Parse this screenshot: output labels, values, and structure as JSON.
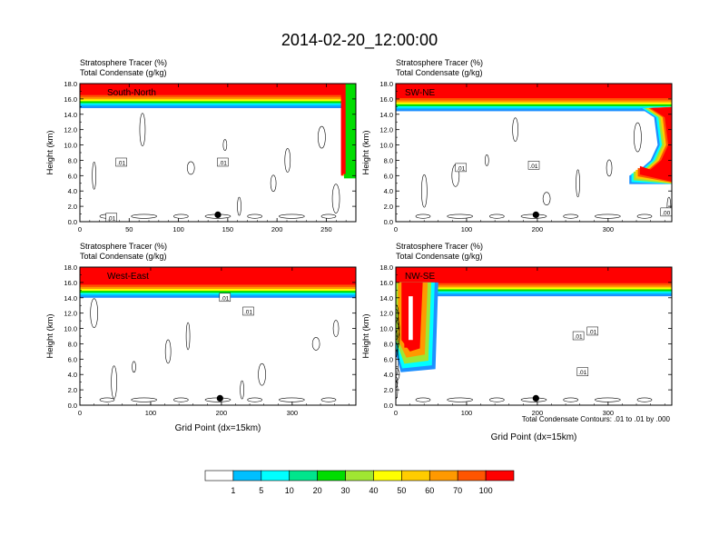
{
  "page": {
    "title": "2014-02-20_12:00:00",
    "contour_note": "Total Condensate Contours: .01 to .01 by .000"
  },
  "chart_data": {
    "type": "heatmap",
    "variables": [
      "Stratosphere Tracer   (%)",
      "Total Condensate   (g/kg)"
    ],
    "ylabel": "Height (km)",
    "xlabel": "Grid Point (dx=15km)",
    "ylim": [
      0,
      18
    ],
    "yticks": [
      "0.0",
      "2.0",
      "4.0",
      "6.0",
      "8.0",
      "10.0",
      "12.0",
      "14.0",
      "16.0",
      "18.0"
    ],
    "colorbar": {
      "levels": [
        "1",
        "5",
        "10",
        "20",
        "30",
        "40",
        "50",
        "60",
        "70",
        "100"
      ],
      "colors": [
        "#ffffff",
        "#1e90ff",
        "#00bfff",
        "#00ffff",
        "#00e58c",
        "#00dd00",
        "#a0e632",
        "#ffff00",
        "#ffcc00",
        "#ff9900",
        "#ff5500",
        "#ff0000"
      ]
    },
    "panels": [
      {
        "name": "South-North",
        "xlim": [
          0,
          280
        ],
        "xticks": [
          0,
          50,
          100,
          150,
          200,
          250
        ],
        "point_marker": 140,
        "contour_labels": [
          {
            "text": ".01",
            "x": 42,
            "y": 7.7
          },
          {
            "text": ".01",
            "x": 145,
            "y": 7.7
          },
          {
            "text": ".01",
            "x": 32,
            "y": 0.5
          }
        ],
        "tracer_base_km": 15.4
      },
      {
        "name": "SW-NE",
        "xlim": [
          0,
          390
        ],
        "xticks": [
          0,
          100,
          200,
          300
        ],
        "point_marker": 198,
        "contour_labels": [
          {
            "text": ".01",
            "x": 92,
            "y": 7.0
          },
          {
            "text": ".01",
            "x": 195,
            "y": 7.3
          },
          {
            "text": ".00",
            "x": 382,
            "y": 1.2
          }
        ],
        "tracer_base_km": 15.0
      },
      {
        "name": "West-East",
        "xlim": [
          0,
          390
        ],
        "xticks": [
          0,
          100,
          200,
          300
        ],
        "point_marker": 198,
        "contour_labels": [
          {
            "text": ".01",
            "x": 205,
            "y": 14.0
          },
          {
            "text": ".01",
            "x": 238,
            "y": 12.2
          }
        ],
        "tracer_base_km": 14.6
      },
      {
        "name": "NW-SE",
        "xlim": [
          0,
          390
        ],
        "xticks": [
          0,
          100,
          200,
          300
        ],
        "point_marker": 198,
        "contour_labels": [
          {
            "text": ".01",
            "x": 258,
            "y": 9.0
          },
          {
            "text": ".01",
            "x": 278,
            "y": 9.6
          },
          {
            "text": ".01",
            "x": 264,
            "y": 4.3
          }
        ],
        "tracer_base_km": 14.8
      }
    ]
  }
}
